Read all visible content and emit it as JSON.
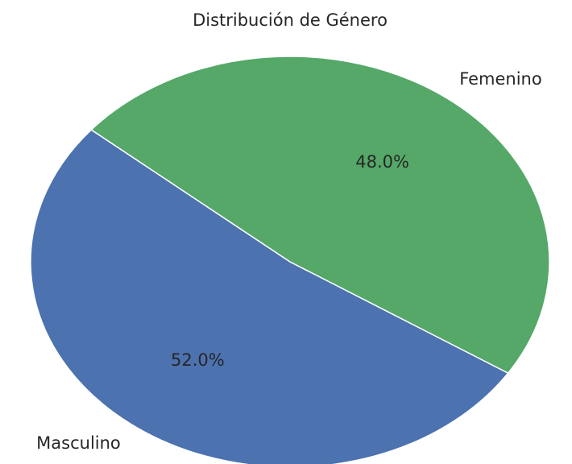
{
  "chart_data": {
    "type": "pie",
    "title": "Distribución de Género",
    "categories": [
      "Masculino",
      "Femenino"
    ],
    "values": [
      52,
      48
    ],
    "value_labels": [
      "52.0%",
      "48.0%"
    ],
    "colors": [
      "#4c72b0",
      "#55a868"
    ]
  }
}
